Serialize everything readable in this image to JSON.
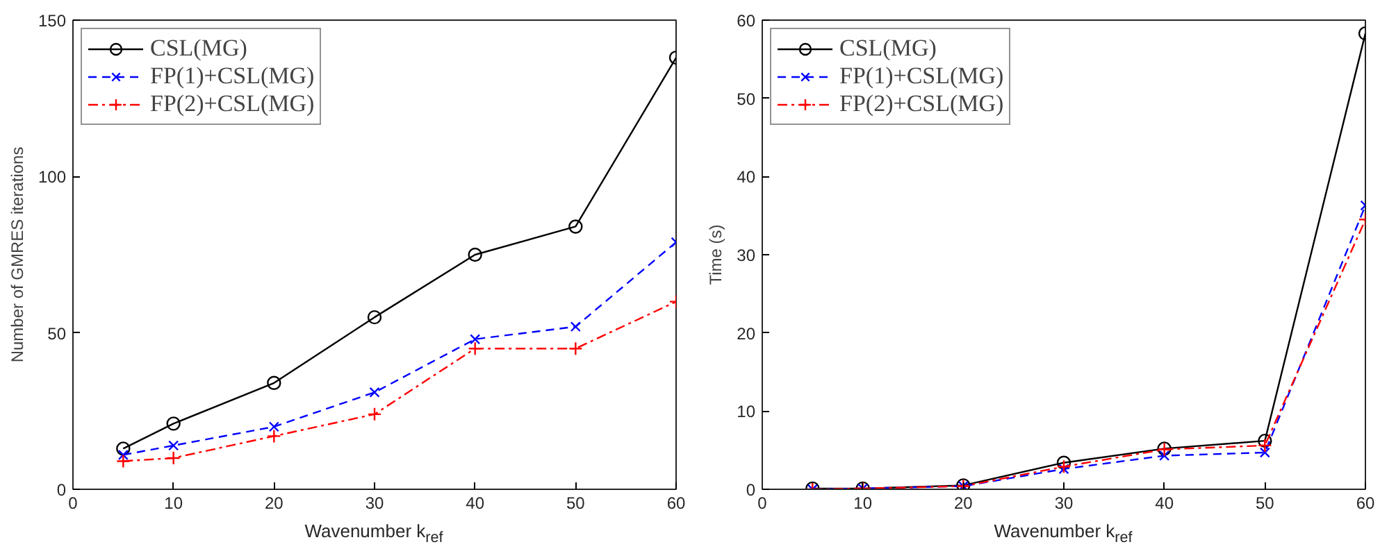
{
  "chart_data": [
    {
      "type": "line",
      "xlabel": "Wavenumber k$_{ref}$",
      "ylabel": "Number of GMRES iterations",
      "x": [
        5,
        10,
        20,
        30,
        40,
        50,
        60
      ],
      "xlim": [
        0,
        60
      ],
      "xticks": [
        0,
        10,
        20,
        30,
        40,
        50,
        60
      ],
      "ylim": [
        0,
        150
      ],
      "yticks": [
        0,
        50,
        100,
        150
      ],
      "grid": false,
      "legend": "top left",
      "series": [
        {
          "name": "CSL(MG)",
          "color": "#000000",
          "marker": "circle",
          "line_style": "solid",
          "values": [
            13,
            21,
            34,
            55,
            75,
            84,
            138
          ]
        },
        {
          "name": "FP(1)+CSL(MG)",
          "color": "#0000ff",
          "marker": "x",
          "line_style": "dashed",
          "values": [
            11,
            14,
            20,
            31,
            48,
            52,
            79
          ]
        },
        {
          "name": "FP(2)+CSL(MG)",
          "color": "#ff0000",
          "marker": "cross",
          "line_style": "dashdot",
          "values": [
            9,
            10,
            17,
            24,
            45,
            45,
            60
          ]
        }
      ]
    },
    {
      "type": "line",
      "xlabel": "Wavenumber k$_{ref}$",
      "ylabel": "Time (s)",
      "x": [
        5,
        10,
        20,
        30,
        40,
        50,
        60
      ],
      "xlim": [
        0,
        60
      ],
      "xticks": [
        0,
        10,
        20,
        30,
        40,
        50,
        60
      ],
      "ylim": [
        0,
        60
      ],
      "yticks": [
        0,
        10,
        20,
        30,
        40,
        50,
        60
      ],
      "grid": false,
      "legend": "top left",
      "series": [
        {
          "name": "CSL(MG)",
          "color": "#000000",
          "marker": "circle",
          "line_style": "solid",
          "values": [
            0.1,
            0.1,
            0.5,
            3.4,
            5.2,
            6.2,
            58.3
          ]
        },
        {
          "name": "FP(1)+CSL(MG)",
          "color": "#0000ff",
          "marker": "x",
          "line_style": "dashed",
          "values": [
            0,
            0.1,
            0.4,
            2.6,
            4.3,
            4.7,
            36.3
          ]
        },
        {
          "name": "FP(2)+CSL(MG)",
          "color": "#ff0000",
          "marker": "cross",
          "line_style": "dashdot",
          "values": [
            0,
            0.1,
            0.4,
            2.9,
            5.1,
            5.6,
            34.5
          ]
        }
      ]
    }
  ]
}
